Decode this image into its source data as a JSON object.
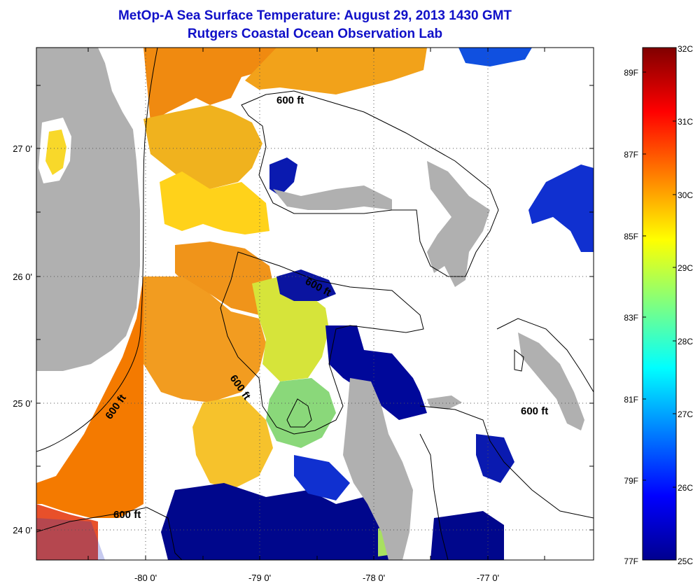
{
  "title": "MetOp-A Sea Surface Temperature:  August 29, 2013 1430 GMT",
  "subtitle": "Rutgers Coastal Ocean Observation Lab",
  "map": {
    "lat_ticks": [
      "27 0'",
      "26 0'",
      "25 0'",
      "24 0'"
    ],
    "lon_ticks": [
      "-80 0'",
      "-79 0'",
      "-78 0'",
      "-77 0'"
    ],
    "isobath_labels": [
      "600 ft",
      "600 ft",
      "600 ft",
      "600 ft",
      "600 ft",
      "600 ft"
    ]
  },
  "colorbar": {
    "celsius_labels": [
      "32C",
      "31C",
      "30C",
      "29C",
      "28C",
      "27C",
      "26C",
      "25C"
    ],
    "fahrenheit_labels": [
      "89F",
      "87F",
      "85F",
      "83F",
      "81F",
      "79F",
      "77F"
    ]
  },
  "colors": {
    "title": "#1010c8",
    "land": "#b0b0b0",
    "cold": "#00008f",
    "warm": "#f47a00"
  }
}
